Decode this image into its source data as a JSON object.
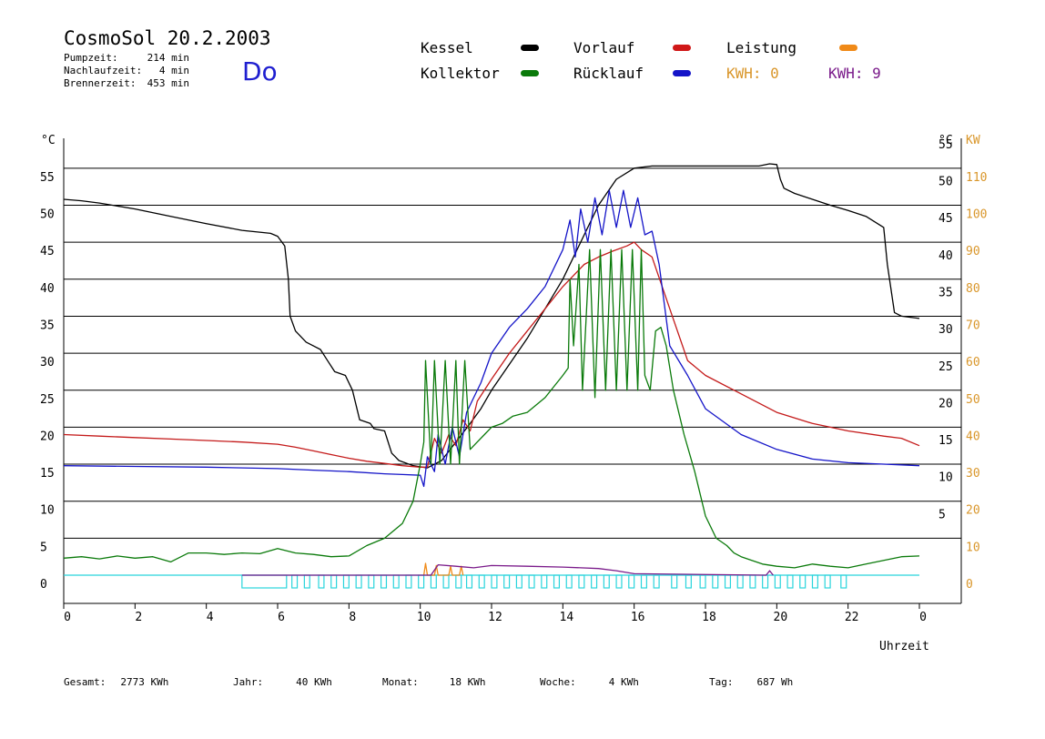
{
  "header": {
    "title": "CosmoSol 20.2.2003",
    "day": "Do",
    "info": [
      {
        "label": "Pumpzeit:",
        "value": "214 min"
      },
      {
        "label": "Nachlaufzeit:",
        "value": "4 min"
      },
      {
        "label": "Brennerzeit:",
        "value": "453 min"
      }
    ]
  },
  "legend": {
    "kessel": "Kessel",
    "kollektor": "Kollektor",
    "vorlauf": "Vorlauf",
    "ruecklauf": "Rücklauf",
    "leistung": "Leistung",
    "kwh_orange": "KWH: 0",
    "kwh_purple": "KWH: 9"
  },
  "colors": {
    "kessel": "#000000",
    "kollektor": "#0a7a0a",
    "vorlauf": "#c41a1a",
    "ruecklauf": "#1414c8",
    "leistung": "#f08a18",
    "kwh_purple": "#7a1a8a",
    "pump": "#28d4dc",
    "axis_orange": "#d9962a"
  },
  "footer": [
    {
      "label": "Gesamt:",
      "value": "2773 KWh"
    },
    {
      "label": "Jahr:",
      "value": "40 KWh"
    },
    {
      "label": "Monat:",
      "value": "18 KWh"
    },
    {
      "label": "Woche:",
      "value": "4 KWh"
    },
    {
      "label": "Tag:",
      "value": "687 Wh"
    }
  ],
  "chart_data": {
    "type": "line",
    "xlabel": "Uhrzeit",
    "ylabel_left": "°C",
    "ylabel_right_temp": "°C",
    "ylabel_right_power": "KW",
    "xlim": [
      0,
      24
    ],
    "ylim": [
      -3,
      60
    ],
    "x_ticks": [
      "0",
      "2",
      "4",
      "6",
      "8",
      "10",
      "12",
      "14",
      "16",
      "18",
      "20",
      "22",
      "0"
    ],
    "y_ticks_left": [
      0,
      5,
      10,
      15,
      20,
      25,
      30,
      35,
      40,
      45,
      50,
      55
    ],
    "y_ticks_right_temp": [
      5,
      10,
      15,
      20,
      25,
      30,
      35,
      40,
      45,
      50,
      55
    ],
    "y_ticks_right_power": [
      0,
      10,
      20,
      30,
      40,
      50,
      60,
      70,
      80,
      90,
      100,
      110
    ],
    "grid": "horizontal",
    "series": [
      {
        "name": "Kessel",
        "key": "kessel",
        "x": [
          0,
          0.5,
          1,
          2,
          3,
          4,
          5,
          5.8,
          6.0,
          6.2,
          6.3,
          6.35,
          6.5,
          6.8,
          7.2,
          7.4,
          7.6,
          7.9,
          8.1,
          8.3,
          8.6,
          8.7,
          9.0,
          9.2,
          9.3,
          9.4,
          9.8,
          10.2,
          10.6,
          11.0,
          11.4,
          11.7,
          12.0,
          12.5,
          13.0,
          13.5,
          14.0,
          14.5,
          15.0,
          15.5,
          16.0,
          16.5,
          17.0,
          18.0,
          19.0,
          19.5,
          19.8,
          20.0,
          20.1,
          20.2,
          20.5,
          21,
          21.5,
          22,
          22.5,
          23.0,
          23.1,
          23.3,
          23.5,
          24.0
        ],
        "y": [
          50.8,
          50.6,
          50.3,
          49.5,
          48.5,
          47.5,
          46.6,
          46.2,
          45.8,
          44.5,
          40,
          35,
          33,
          31.5,
          30.5,
          29,
          27.5,
          27,
          25,
          21,
          20.5,
          19.8,
          19.5,
          16.5,
          16,
          15.5,
          14.8,
          14.5,
          15.5,
          18,
          20.5,
          22.5,
          25,
          28.5,
          32,
          36,
          40,
          45,
          50,
          53.5,
          55,
          55.3,
          55.3,
          55.3,
          55.3,
          55.3,
          55.6,
          55.5,
          53.5,
          52.3,
          51.6,
          50.8,
          50,
          49.3,
          48.5,
          47,
          42,
          35.5,
          35,
          34.7
        ]
      },
      {
        "name": "Vorlauf",
        "key": "vorlauf",
        "x": [
          0,
          1,
          2,
          3,
          4,
          5,
          6,
          6.5,
          7,
          7.5,
          8,
          8.5,
          9,
          9.5,
          10,
          10.2,
          10.4,
          10.6,
          10.8,
          11,
          11.2,
          11.4,
          11.6,
          12.0,
          12.5,
          13.0,
          13.5,
          14.0,
          14.3,
          14.6,
          15.0,
          15.4,
          15.8,
          16.0,
          16.2,
          16.5,
          17.0,
          17.5,
          18.0,
          19.0,
          20.0,
          21.0,
          22.0,
          23.0,
          23.5,
          24.0
        ],
        "y": [
          19,
          18.8,
          18.6,
          18.4,
          18.2,
          18,
          17.7,
          17.3,
          16.8,
          16.3,
          15.8,
          15.4,
          15.1,
          14.8,
          14.6,
          14.6,
          18.5,
          16.5,
          19,
          17.5,
          21,
          19.5,
          23.5,
          26.5,
          30,
          33,
          36,
          39,
          40.5,
          42,
          43,
          43.8,
          44.5,
          45,
          44,
          43,
          36,
          29,
          27,
          24.5,
          22,
          20.5,
          19.5,
          18.8,
          18.5,
          17.5
        ]
      },
      {
        "name": "Rücklauf",
        "key": "ruecklauf",
        "x": [
          0,
          2,
          4,
          6,
          7,
          8,
          9,
          9.5,
          10,
          10.1,
          10.2,
          10.4,
          10.5,
          10.7,
          10.9,
          11.1,
          11.3,
          11.5,
          11.7,
          12.0,
          12.5,
          13.0,
          13.5,
          14.0,
          14.2,
          14.35,
          14.5,
          14.7,
          14.9,
          15.1,
          15.3,
          15.5,
          15.7,
          15.9,
          16.1,
          16.3,
          16.5,
          16.7,
          17.0,
          17.5,
          18.0,
          19.0,
          20.0,
          21.0,
          22.0,
          23.0,
          24.0
        ],
        "y": [
          14.8,
          14.7,
          14.6,
          14.4,
          14.2,
          14,
          13.7,
          13.6,
          13.5,
          12,
          16,
          14,
          19,
          15,
          20,
          16,
          22,
          24,
          26,
          30,
          33.5,
          36,
          39,
          44,
          48,
          43,
          49.5,
          45,
          51,
          46,
          52,
          47,
          52,
          47,
          51,
          46,
          46.5,
          42,
          31,
          27,
          22.5,
          19,
          17,
          15.7,
          15.2,
          15,
          14.8
        ]
      },
      {
        "name": "Kollektor",
        "key": "kollektor",
        "x": [
          0,
          0.5,
          1,
          1.5,
          2,
          2.5,
          3,
          3.5,
          4,
          4.5,
          5,
          5.5,
          6,
          6.5,
          7,
          7.5,
          8,
          8.5,
          9,
          9.5,
          9.8,
          10.0,
          10.1,
          10.15,
          10.3,
          10.4,
          10.55,
          10.7,
          10.85,
          11.0,
          11.1,
          11.25,
          11.4,
          11.6,
          11.8,
          12.0,
          12.3,
          12.6,
          13.0,
          13.5,
          14.0,
          14.15,
          14.2,
          14.3,
          14.45,
          14.55,
          14.75,
          14.9,
          15.05,
          15.2,
          15.35,
          15.5,
          15.65,
          15.8,
          15.95,
          16.1,
          16.2,
          16.3,
          16.45,
          16.6,
          16.75,
          16.9,
          17.1,
          17.4,
          17.7,
          18.0,
          18.3,
          18.6,
          18.8,
          19.0,
          19.3,
          19.6,
          20.0,
          20.5,
          21.0,
          21.5,
          22.0,
          22.5,
          23.0,
          23.5,
          24.0
        ],
        "y": [
          2.3,
          2.5,
          2.2,
          2.6,
          2.3,
          2.5,
          1.8,
          3,
          3,
          2.8,
          3,
          2.9,
          3.6,
          3.0,
          2.8,
          2.5,
          2.6,
          4,
          5,
          7,
          10,
          15,
          18,
          29,
          15,
          29,
          15,
          29,
          15,
          29,
          15,
          29,
          17,
          18,
          19,
          20,
          20.5,
          21.5,
          22,
          24,
          27,
          28,
          40,
          31,
          42,
          25,
          44,
          24,
          44,
          25,
          44,
          25,
          44,
          25,
          44,
          25,
          44,
          27,
          25,
          33,
          33.5,
          31,
          25,
          19,
          14,
          8,
          5,
          4,
          3,
          2.5,
          2,
          1.5,
          1.2,
          1.0,
          1.5,
          1.2,
          1.0,
          1.5,
          2,
          2.5,
          2.6
        ]
      },
      {
        "name": "Leistung",
        "key": "leistung",
        "x": [
          10.1,
          10.15,
          10.2,
          10.4,
          10.45,
          10.5,
          10.8,
          10.85,
          10.9,
          11.1,
          11.15,
          11.2
        ],
        "y": [
          0,
          1.6,
          0,
          0,
          1.3,
          0,
          0,
          1.2,
          0,
          0,
          1.2,
          0
        ]
      },
      {
        "name": "KWH: 9",
        "key": "kwh_purple",
        "x": [
          5.0,
          6.2,
          6.25,
          10.3,
          10.5,
          11.0,
          11.5,
          12,
          13,
          14,
          15,
          15.5,
          16,
          19.7,
          19.8,
          19.9
        ],
        "y": [
          0,
          0,
          0,
          0,
          1.4,
          1.2,
          1.0,
          1.3,
          1.2,
          1.1,
          0.9,
          0.6,
          0.2,
          0,
          0.6,
          0
        ]
      }
    ],
    "pump_intervals": [
      [
        5.0,
        6.25
      ],
      [
        6.4,
        6.55
      ],
      [
        6.75,
        6.9
      ],
      [
        7.15,
        7.3
      ],
      [
        7.5,
        7.65
      ],
      [
        7.85,
        8.0
      ],
      [
        8.2,
        8.35
      ],
      [
        8.55,
        8.7
      ],
      [
        8.9,
        9.05
      ],
      [
        9.25,
        9.4
      ],
      [
        9.6,
        9.75
      ],
      [
        9.95,
        10.1
      ],
      [
        10.3,
        10.45
      ],
      [
        10.65,
        10.8
      ],
      [
        11.0,
        11.15
      ],
      [
        11.3,
        11.45
      ],
      [
        11.65,
        11.8
      ],
      [
        12.0,
        12.15
      ],
      [
        12.35,
        12.5
      ],
      [
        12.7,
        12.85
      ],
      [
        13.05,
        13.2
      ],
      [
        13.4,
        13.55
      ],
      [
        13.75,
        13.9
      ],
      [
        14.1,
        14.25
      ],
      [
        14.45,
        14.6
      ],
      [
        14.8,
        14.95
      ],
      [
        15.15,
        15.3
      ],
      [
        15.5,
        15.65
      ],
      [
        15.85,
        16.0
      ],
      [
        16.2,
        16.35
      ],
      [
        16.55,
        16.7
      ],
      [
        17.05,
        17.2
      ],
      [
        17.45,
        17.6
      ],
      [
        17.85,
        18.0
      ],
      [
        18.2,
        18.35
      ],
      [
        18.55,
        18.7
      ],
      [
        18.9,
        19.05
      ],
      [
        19.25,
        19.4
      ],
      [
        19.6,
        19.75
      ],
      [
        19.95,
        20.1
      ],
      [
        20.3,
        20.45
      ],
      [
        20.65,
        20.8
      ],
      [
        21.0,
        21.15
      ],
      [
        21.35,
        21.5
      ],
      [
        21.8,
        21.95
      ]
    ]
  }
}
